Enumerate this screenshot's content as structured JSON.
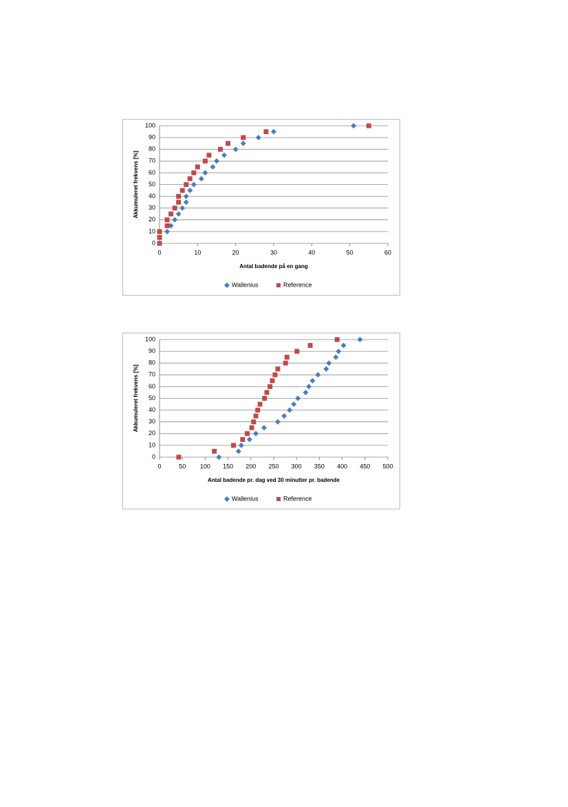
{
  "chart_data": [
    {
      "type": "scatter",
      "x_label": "Antal badende på en gang",
      "y_label": "Akkumuleret frekvens [%]",
      "xlim": [
        0,
        60
      ],
      "xticks": [
        0,
        10,
        20,
        30,
        40,
        50,
        60
      ],
      "ylim": [
        0,
        100
      ],
      "yticks": [
        0,
        10,
        20,
        30,
        40,
        50,
        60,
        70,
        80,
        90,
        100
      ],
      "grid": true,
      "series": [
        {
          "name": "Wallenius",
          "color": "#4a7ebb",
          "marker": "diamond",
          "x": [
            2,
            3,
            4,
            5,
            6,
            7,
            7,
            8,
            9,
            11,
            12,
            14,
            15,
            17,
            20,
            22,
            26,
            30,
            51
          ],
          "values": [
            10,
            15,
            20,
            25,
            30,
            35,
            40,
            45,
            50,
            55,
            60,
            65,
            70,
            75,
            80,
            85,
            90,
            95,
            100
          ]
        },
        {
          "name": "Reference",
          "color": "#be4b48",
          "marker": "square",
          "x": [
            0,
            0,
            0,
            2,
            2,
            3,
            4,
            5,
            5,
            6,
            7,
            8,
            9,
            10,
            12,
            13,
            16,
            18,
            22,
            28,
            55
          ],
          "values": [
            0,
            5,
            10,
            15,
            20,
            25,
            30,
            35,
            40,
            45,
            50,
            55,
            60,
            65,
            70,
            75,
            80,
            85,
            90,
            95,
            100
          ]
        }
      ]
    },
    {
      "type": "scatter",
      "x_label": "Antal badende pr. dag ved 30 minutter pr. badende",
      "y_label": "Akkumuleret frekvens [%]",
      "xlim": [
        0,
        500
      ],
      "xticks": [
        0,
        50,
        100,
        150,
        200,
        250,
        300,
        350,
        400,
        450,
        500
      ],
      "ylim": [
        0,
        100
      ],
      "yticks": [
        0,
        10,
        20,
        30,
        40,
        50,
        60,
        70,
        80,
        90,
        100
      ],
      "grid": true,
      "series": [
        {
          "name": "Wallenius",
          "color": "#4a7ebb",
          "marker": "diamond",
          "x": [
            130,
            173,
            179,
            197,
            211,
            229,
            259,
            273,
            285,
            294,
            303,
            320,
            327,
            335,
            347,
            365,
            371,
            386,
            392,
            403,
            439
          ],
          "values": [
            0,
            5,
            10,
            15,
            20,
            25,
            30,
            35,
            40,
            45,
            50,
            55,
            60,
            65,
            70,
            75,
            80,
            85,
            90,
            95,
            100
          ]
        },
        {
          "name": "Reference",
          "color": "#be4b48",
          "marker": "square",
          "x": [
            42,
            120,
            162,
            182,
            192,
            202,
            206,
            211,
            215,
            220,
            230,
            235,
            242,
            247,
            253,
            259,
            276,
            279,
            301,
            330,
            389
          ],
          "values": [
            0,
            5,
            10,
            15,
            20,
            25,
            30,
            35,
            40,
            45,
            50,
            55,
            60,
            65,
            70,
            75,
            80,
            85,
            90,
            95,
            100
          ]
        }
      ]
    }
  ]
}
